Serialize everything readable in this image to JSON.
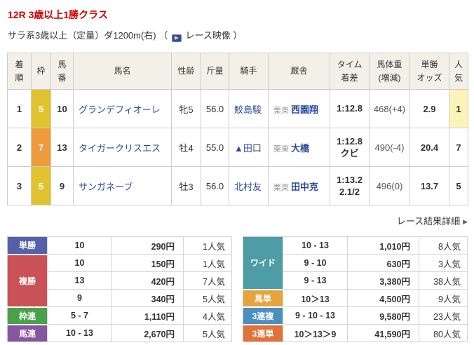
{
  "page": {
    "race_title": "12R 3歳以上1勝クラス",
    "race_conditions_prefix": "サラ系3歳以上（定量）ダ1200m(右) （",
    "video_link_label": "レース映像",
    "race_conditions_suffix": "）",
    "video_icon_glyph": "▶",
    "detail_link_label": "レース結果詳細",
    "detail_link_arrow": "▶"
  },
  "colors": {
    "accent_red": "#cc0000",
    "link_blue": "#2b4a9e",
    "table_header_beige": "#f3f0e8",
    "popularity_highlight": "#fcf3b8"
  },
  "results_table": {
    "headers": [
      "着\n順",
      "枠",
      "馬\n番",
      "馬名",
      "性齢",
      "斤量",
      "騎手",
      "厩舎",
      "タイム\n着差",
      "馬体重\n(増減)",
      "単勝\nオッズ",
      "人\n気"
    ],
    "rows": [
      {
        "finish": "1",
        "bracket": "5",
        "bracket_color": "#e0c32e",
        "horse_number": "10",
        "horse_name": "グランデフィオーレ",
        "sex_age": "牝5",
        "weight_carried": "56.0",
        "jockey": "鮫島駿",
        "stable_region": "栗東",
        "trainer": "西園翔",
        "time": "1:12.8",
        "margin": "",
        "horse_weight": "468(+4)",
        "odds": "2.9",
        "popularity": "1"
      },
      {
        "finish": "2",
        "bracket": "7",
        "bracket_color": "#ef9b3d",
        "horse_number": "13",
        "horse_name": "タイガークリスエス",
        "sex_age": "牡4",
        "weight_carried": "55.0",
        "jockey": "▲田口",
        "stable_region": "栗東",
        "trainer": "大橋",
        "time": "1:12.8",
        "margin": "クビ",
        "horse_weight": "490(-4)",
        "odds": "20.4",
        "popularity": "7"
      },
      {
        "finish": "3",
        "bracket": "5",
        "bracket_color": "#e0c32e",
        "horse_number": "9",
        "horse_name": "サンガネーブ",
        "sex_age": "牡3",
        "weight_carried": "56.0",
        "jockey": "北村友",
        "stable_region": "栗東",
        "trainer": "田中克",
        "time": "1:13.2",
        "margin": "2.1/2",
        "horse_weight": "496(0)",
        "odds": "13.7",
        "popularity": "5"
      }
    ]
  },
  "payouts": {
    "left": [
      {
        "type": "単勝",
        "color": "#5560a8",
        "rows": [
          [
            "10",
            "290円",
            "1人気"
          ]
        ]
      },
      {
        "type": "複勝",
        "color": "#ca5257",
        "rows": [
          [
            "10",
            "150円",
            "1人気"
          ],
          [
            "13",
            "420円",
            "7人気"
          ],
          [
            "9",
            "340円",
            "5人気"
          ]
        ]
      },
      {
        "type": "枠連",
        "color": "#4ba04b",
        "rows": [
          [
            "5 - 7",
            "1,110円",
            "4人気"
          ]
        ]
      },
      {
        "type": "馬連",
        "color": "#86579e",
        "rows": [
          [
            "10 - 13",
            "2,670円",
            "5人気"
          ]
        ]
      }
    ],
    "right": [
      {
        "type": "ワイド",
        "color": "#4d9ca6",
        "rows": [
          [
            "10 - 13",
            "1,010円",
            "8人気"
          ],
          [
            "9 - 10",
            "630円",
            "3人気"
          ],
          [
            "9 - 13",
            "3,380円",
            "38人気"
          ]
        ]
      },
      {
        "type": "馬単",
        "color": "#e5a43c",
        "rows": [
          [
            "10＞13",
            "4,500円",
            "9人気"
          ]
        ]
      },
      {
        "type": "3連複",
        "color": "#4a8fc0",
        "rows": [
          [
            "9 - 10 - 13",
            "9,580円",
            "23人気"
          ]
        ]
      },
      {
        "type": "3連単",
        "color": "#e0733a",
        "rows": [
          [
            "10＞13＞9",
            "41,590円",
            "80人気"
          ]
        ]
      }
    ]
  }
}
